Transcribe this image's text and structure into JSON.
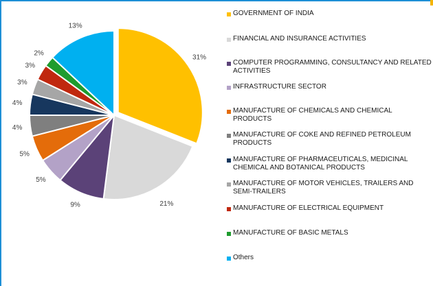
{
  "chart_data": {
    "type": "pie",
    "title": "",
    "legend_position": "right",
    "slices": [
      {
        "label": "GOVERNMENT OF INDIA",
        "value": 31,
        "value_label": "31%",
        "color": "#ffc000"
      },
      {
        "label": "FINANCIAL AND INSURANCE ACTIVITIES",
        "value": 21,
        "value_label": "21%",
        "color": "#d9d9d9"
      },
      {
        "label": "COMPUTER PROGRAMMING, CONSULTANCY AND RELATED ACTIVITIES",
        "value": 9,
        "value_label": "9%",
        "color": "#5b4278"
      },
      {
        "label": "INFRASTRUCTURE SECTOR",
        "value": 5,
        "value_label": "5%",
        "color": "#b3a2c7"
      },
      {
        "label": "MANUFACTURE OF CHEMICALS AND CHEMICAL PRODUCTS",
        "value": 5,
        "value_label": "5%",
        "color": "#e46c0a"
      },
      {
        "label": "MANUFACTURE OF COKE AND REFINED PETROLEUM PRODUCTS",
        "value": 4,
        "value_label": "4%",
        "color": "#7f7f7f"
      },
      {
        "label": "MANUFACTURE OF PHARMACEUTICALS, MEDICINAL CHEMICAL AND BOTANICAL PRODUCTS",
        "value": 4,
        "value_label": "4%",
        "color": "#17375e"
      },
      {
        "label": "MANUFACTURE OF MOTOR VEHICLES, TRAILERS AND SEMI-TRAILERS",
        "value": 3,
        "value_label": "3%",
        "color": "#a6a6a6"
      },
      {
        "label": "MANUFACTURE OF ELECTRICAL EQUIPMENT",
        "value": 3,
        "value_label": "3%",
        "color": "#c0280f"
      },
      {
        "label": "MANUFACTURE OF BASIC METALS",
        "value": 2,
        "value_label": "2%",
        "color": "#1e9c2e"
      },
      {
        "label": "Others",
        "value": 13,
        "value_label": "13%",
        "color": "#00b0f0"
      }
    ]
  }
}
